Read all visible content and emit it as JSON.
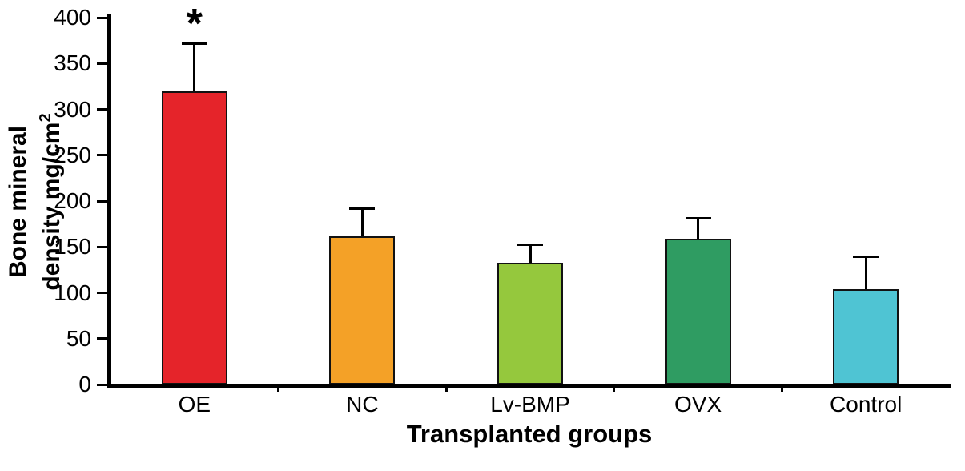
{
  "chart_data": {
    "type": "bar",
    "title": "",
    "xlabel": "Transplanted groups",
    "ylabel": "Bone mineral density mg/cm2",
    "ylabel_parts": {
      "line1": "Bone mineral",
      "line2": "density mg/cm",
      "sup": "2"
    },
    "categories": [
      "OE",
      "NC",
      "Lv-BMP",
      "OVX",
      "Control"
    ],
    "values": [
      320,
      162,
      133,
      159,
      104
    ],
    "errors_plus": [
      52,
      30,
      19,
      22,
      35
    ],
    "bar_colors": [
      "#e5242a",
      "#f4a127",
      "#95c83d",
      "#2f9c62",
      "#4fc4d3"
    ],
    "annotations": [
      {
        "category": "OE",
        "text": "*"
      }
    ],
    "ylim": [
      0,
      400
    ],
    "yticks": [
      0,
      50,
      100,
      150,
      200,
      250,
      300,
      350,
      400
    ],
    "grid": false,
    "legend": false
  }
}
